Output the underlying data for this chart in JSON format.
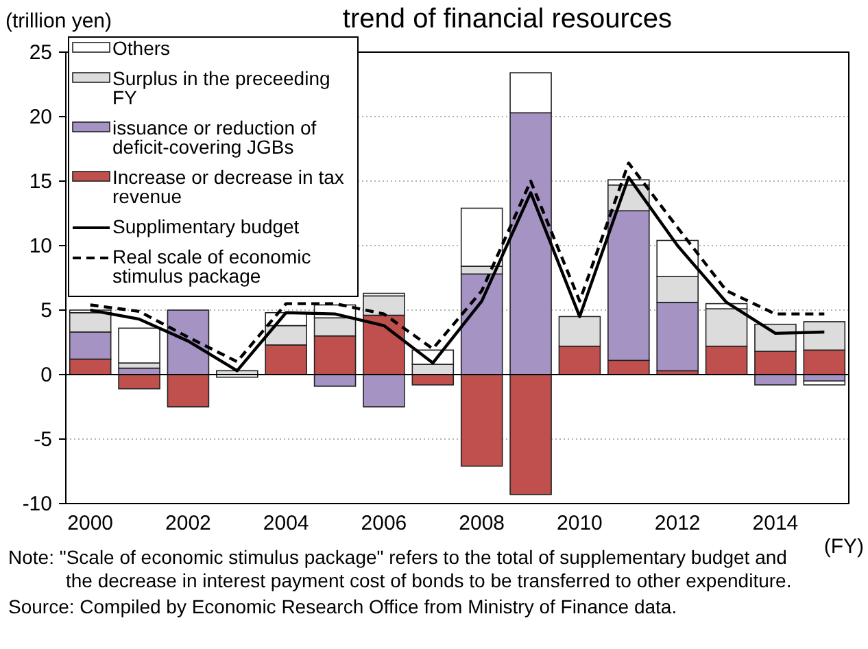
{
  "chart_data": {
    "type": "bar",
    "title": "trend of financial resources",
    "ylabel": "(trillion yen)",
    "xlabel": "(FY)",
    "categories": [
      "2000",
      null,
      "2002",
      null,
      "2004",
      null,
      "2006",
      null,
      "2008",
      null,
      "2010",
      null,
      "2012",
      null,
      "2014",
      null
    ],
    "stacked": true,
    "series": [
      {
        "name": "Increase or decrease in tax revenue",
        "color": "#c0504d",
        "values": [
          1.2,
          -1.1,
          -2.5,
          null,
          2.3,
          3.0,
          4.6,
          -0.8,
          -7.1,
          -9.3,
          2.2,
          1.1,
          0.3,
          2.2,
          1.8,
          1.9
        ]
      },
      {
        "name": "issuance or reduction of deficit-covering JGBs",
        "color": "#a593c4",
        "values": [
          2.1,
          0.5,
          5.0,
          null,
          null,
          -0.9,
          -2.5,
          null,
          7.8,
          20.3,
          null,
          11.6,
          5.3,
          null,
          -0.8,
          -0.5
        ]
      },
      {
        "name": "Surplus in the preceeding FY",
        "color": "#dcdcdc",
        "values": [
          1.5,
          0.4,
          null,
          0.3,
          1.5,
          1.4,
          1.5,
          0.8,
          0.6,
          null,
          2.3,
          2.0,
          2.0,
          2.9,
          2.1,
          2.2
        ]
      },
      {
        "name": "Others",
        "color": "#ffffff",
        "values": [
          0.2,
          2.7,
          null,
          -0.2,
          1.0,
          1.0,
          0.2,
          1.1,
          4.5,
          3.1,
          null,
          0.4,
          2.8,
          0.4,
          null,
          -0.3
        ]
      },
      {
        "name": "Supplimentary budget",
        "type": "line",
        "color": "#000000",
        "line_style": "solid",
        "values": [
          5.0,
          4.3,
          2.6,
          0.3,
          4.8,
          4.7,
          3.8,
          0.9,
          5.7,
          14.1,
          4.5,
          15.3,
          10.0,
          5.6,
          3.2,
          3.3
        ]
      },
      {
        "name": "Real scale of economic stimulus package",
        "type": "line",
        "color": "#000000",
        "line_style": "dashed",
        "values": [
          5.4,
          4.9,
          2.9,
          1.0,
          5.5,
          5.5,
          4.7,
          2.0,
          6.5,
          15.0,
          5.7,
          16.4,
          11.4,
          6.5,
          4.7,
          4.7
        ]
      }
    ],
    "ylim": [
      -10,
      25
    ],
    "yticks": [
      -10,
      -5,
      0,
      5,
      10,
      15,
      20,
      25
    ],
    "grid": "y",
    "legend": "top left",
    "annotations": [
      "Note: \"Scale of economic stimulus package\"  refers to the total of supplementary budget and the decrease in interest payment cost  of bonds to be transferred to other expenditure.",
      "Source: Compiled by Economic Research Office from Ministry of Finance data."
    ]
  }
}
